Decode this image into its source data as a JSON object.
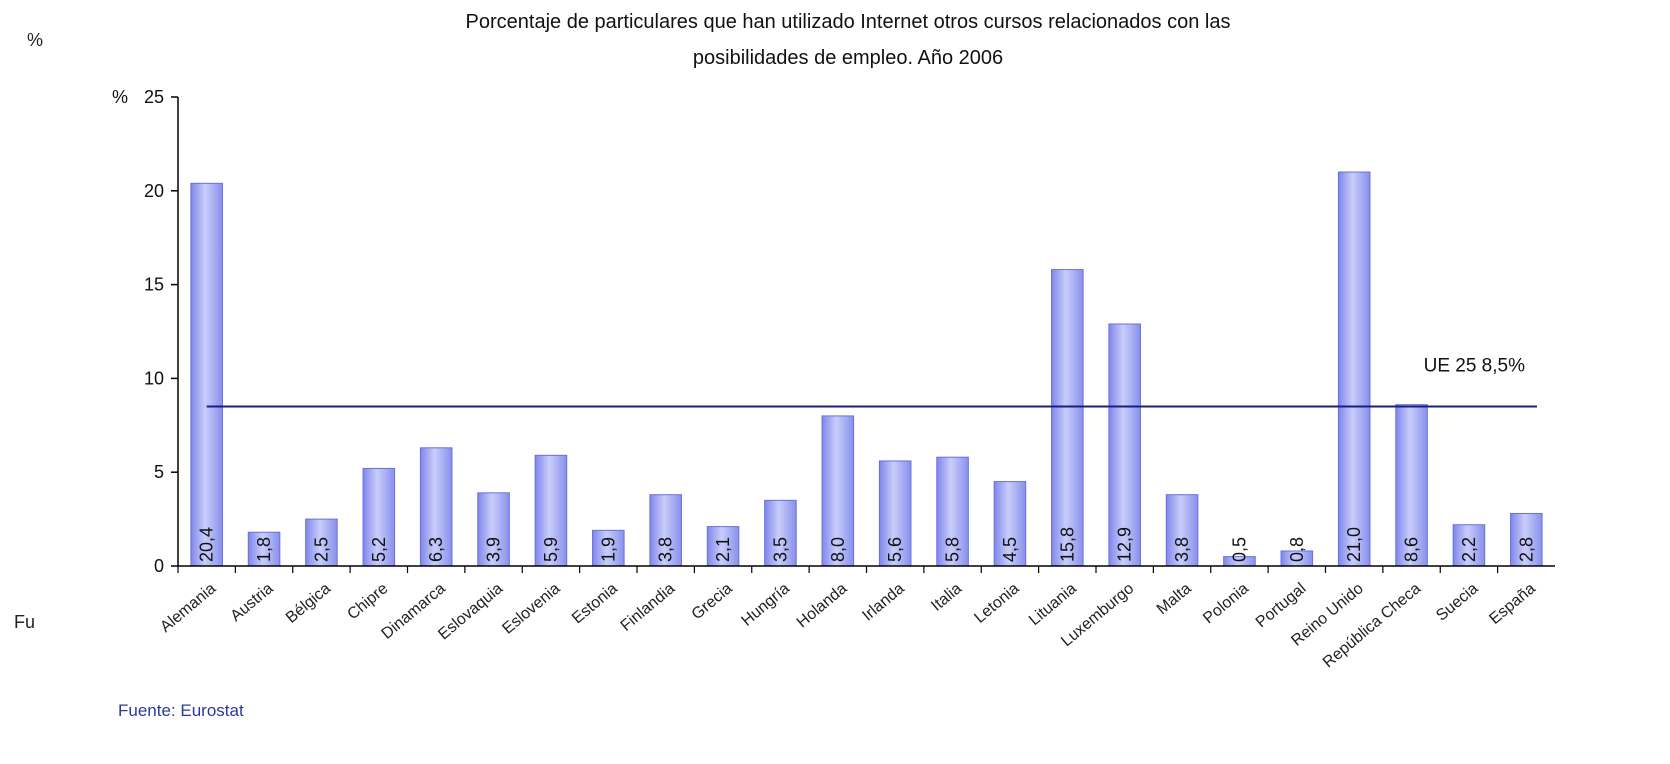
{
  "stray_texts": {
    "percent_top_left": "%",
    "fuente_fragment": "Fu"
  },
  "chart_data": {
    "type": "bar",
    "title_lines": [
      "Porcentaje de  particulares que han utilizado Internet otros cursos relacionados con las",
      "posibilidades de empleo. Año 2006"
    ],
    "y_unit_label": "%",
    "ylim": [
      0,
      25
    ],
    "yticks": [
      0,
      5,
      10,
      15,
      20,
      25
    ],
    "categories": [
      "Alemania",
      "Austria",
      "Bélgica",
      "Chipre",
      "Dinamarca",
      "Eslovaquia",
      "Eslovenia",
      "Estonia",
      "Finlandia",
      "Grecia",
      "Hungría",
      "Holanda",
      "Irlanda",
      "Italia",
      "Letonia",
      "Lituania",
      "Luxemburgo",
      "Malta",
      "Polonia",
      "Portugal",
      "Reino Unido",
      "República Checa",
      "Suecia",
      "España"
    ],
    "values": [
      20.4,
      1.8,
      2.5,
      5.2,
      6.3,
      3.9,
      5.9,
      1.9,
      3.8,
      2.1,
      3.5,
      8.0,
      5.6,
      5.8,
      4.5,
      15.8,
      12.9,
      3.8,
      0.5,
      0.8,
      21.0,
      8.6,
      2.2,
      2.8
    ],
    "value_labels": [
      "20,4",
      "1,8",
      "2,5",
      "5,2",
      "6,3",
      "3,9",
      "5,9",
      "1,9",
      "3,8",
      "2,1",
      "3,5",
      "8,0",
      "5,6",
      "5,8",
      "4,5",
      "15,8",
      "12,9",
      "3,8",
      "0,5",
      "0,8",
      "21,0",
      "8,6",
      "2,2",
      "2,8"
    ],
    "reference_line": {
      "value": 8.5,
      "label": "UE 25 8,5%"
    },
    "source": "Fuente:  Eurostat",
    "grid": false,
    "legend": "none",
    "colors": {
      "bar": "#9fa6f2",
      "bar_edge": "#6870e0",
      "axis": "#000000",
      "reference": "#1b1f7a"
    }
  }
}
